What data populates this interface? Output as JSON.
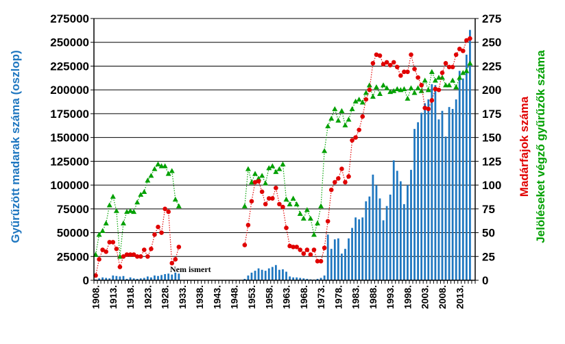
{
  "chart_data": {
    "type": "bar+line",
    "title": "",
    "left_axis": {
      "label": "Gyűrűzött madarak száma (oszlop)",
      "range": [
        0,
        275000
      ],
      "ticks": [
        "0",
        "25000",
        "50000",
        "75000",
        "100000",
        "125000",
        "150000",
        "175000",
        "200000",
        "225000",
        "250000",
        "275000"
      ],
      "color": "#1F77C0"
    },
    "right_axis": {
      "label_red": "Madárfajok száma",
      "label_green": "Jelöléseket végző gyűrűzők száma",
      "range": [
        0,
        275
      ],
      "ticks": [
        "0",
        "25",
        "50",
        "75",
        "100",
        "125",
        "150",
        "175",
        "200",
        "225",
        "250",
        "275"
      ],
      "color_red": "#E00000",
      "color_green": "#00A000"
    },
    "x_axis": {
      "range": [
        1908,
        2017
      ],
      "tick_labels": [
        "1908.",
        "1913.",
        "1918.",
        "1923.",
        "1928.",
        "1933.",
        "1938.",
        "1943.",
        "1948.",
        "1953.",
        "1958.",
        "1963.",
        "1968.",
        "1973.",
        "1978.",
        "1983.",
        "1988.",
        "1993.",
        "1998.",
        "2003.",
        "2008.",
        "2013."
      ],
      "tick_years": [
        1908,
        1913,
        1918,
        1923,
        1928,
        1933,
        1938,
        1943,
        1948,
        1953,
        1958,
        1963,
        1968,
        1973,
        1978,
        1983,
        1988,
        1993,
        1998,
        2003,
        2008,
        2013
      ]
    },
    "annotation": "Nem ismert",
    "grid": true,
    "bars": {
      "name": "Gyűrűzött madarak",
      "color": "#1F77C0",
      "x": [
        1908,
        1909,
        1910,
        1911,
        1912,
        1913,
        1914,
        1915,
        1916,
        1917,
        1918,
        1919,
        1920,
        1921,
        1922,
        1923,
        1924,
        1925,
        1926,
        1927,
        1928,
        1929,
        1930,
        1931,
        1932,
        1951,
        1952,
        1953,
        1954,
        1955,
        1956,
        1957,
        1958,
        1959,
        1960,
        1961,
        1962,
        1963,
        1964,
        1965,
        1966,
        1967,
        1968,
        1969,
        1970,
        1971,
        1972,
        1973,
        1974,
        1975,
        1976,
        1977,
        1978,
        1979,
        1980,
        1981,
        1982,
        1983,
        1984,
        1985,
        1986,
        1987,
        1988,
        1989,
        1990,
        1991,
        1992,
        1993,
        1994,
        1995,
        1996,
        1997,
        1998,
        1999,
        2000,
        2001,
        2002,
        2003,
        2004,
        2005,
        2006,
        2007,
        2008,
        2009,
        2010,
        2011,
        2012,
        2013,
        2014,
        2015,
        2016
      ],
      "values": [
        800,
        2000,
        3000,
        2500,
        2000,
        5000,
        4500,
        4000,
        4500,
        1500,
        3000,
        2000,
        1500,
        2000,
        2500,
        4000,
        3000,
        5000,
        4500,
        5500,
        6500,
        7000,
        6000,
        8000,
        7000,
        1500,
        5000,
        8000,
        10000,
        12500,
        11000,
        10000,
        12500,
        14000,
        16000,
        11000,
        11500,
        9000,
        4000,
        3000,
        3000,
        2500,
        2000,
        1500,
        1000,
        800,
        1500,
        2500,
        5000,
        48000,
        33000,
        43000,
        44000,
        28000,
        33000,
        44000,
        55000,
        66000,
        64000,
        66000,
        83000,
        88000,
        111000,
        100000,
        86000,
        63000,
        78000,
        90000,
        126000,
        115000,
        104000,
        80000,
        100000,
        116000,
        159000,
        166000,
        176000,
        186000,
        190000,
        206000,
        205000,
        169000,
        178000,
        151000,
        182000,
        180000,
        190000,
        220000,
        212000,
        237000,
        263000
      ]
    },
    "series_red": {
      "name": "Madárfajok száma",
      "color": "#E00000",
      "x": [
        1908,
        1909,
        1910,
        1911,
        1912,
        1913,
        1914,
        1915,
        1916,
        1917,
        1918,
        1919,
        1920,
        1921,
        1922,
        1923,
        1924,
        1925,
        1926,
        1927,
        1928,
        1929,
        1930,
        1931,
        1932,
        1951,
        1952,
        1953,
        1954,
        1955,
        1956,
        1957,
        1958,
        1959,
        1960,
        1961,
        1962,
        1963,
        1964,
        1965,
        1966,
        1967,
        1968,
        1969,
        1970,
        1971,
        1972,
        1973,
        1974,
        1975,
        1976,
        1977,
        1978,
        1979,
        1980,
        1981,
        1982,
        1983,
        1984,
        1985,
        1986,
        1987,
        1988,
        1989,
        1990,
        1991,
        1992,
        1993,
        1994,
        1995,
        1996,
        1997,
        1998,
        1999,
        2000,
        2001,
        2002,
        2003,
        2004,
        2005,
        2006,
        2007,
        2008,
        2009,
        2010,
        2011,
        2012,
        2013,
        2014,
        2015,
        2016
      ],
      "values": [
        5,
        22,
        32,
        30,
        40,
        40,
        33,
        14,
        25,
        27,
        27,
        27,
        25,
        25,
        32,
        25,
        33,
        48,
        56,
        50,
        75,
        72,
        18,
        22,
        35,
        37,
        58,
        83,
        103,
        104,
        93,
        80,
        86,
        86,
        97,
        80,
        77,
        55,
        36,
        35,
        35,
        32,
        28,
        32,
        27,
        32,
        20,
        20,
        34,
        62,
        95,
        103,
        107,
        117,
        103,
        109,
        147,
        150,
        158,
        172,
        190,
        200,
        228,
        237,
        236,
        227,
        229,
        226,
        229,
        224,
        215,
        219,
        219,
        237,
        222,
        213,
        205,
        181,
        180,
        189,
        201,
        200,
        218,
        228,
        224,
        224,
        237,
        243,
        241,
        252,
        254
      ]
    },
    "series_green": {
      "name": "Jelöléseket végző gyűrűzők száma",
      "color": "#00A000",
      "x": [
        1908,
        1909,
        1910,
        1911,
        1912,
        1913,
        1914,
        1915,
        1916,
        1917,
        1918,
        1919,
        1920,
        1921,
        1922,
        1923,
        1924,
        1925,
        1926,
        1927,
        1928,
        1929,
        1930,
        1931,
        1932,
        1951,
        1952,
        1953,
        1954,
        1955,
        1956,
        1957,
        1958,
        1959,
        1960,
        1961,
        1962,
        1963,
        1964,
        1965,
        1966,
        1967,
        1968,
        1969,
        1970,
        1971,
        1972,
        1973,
        1974,
        1975,
        1976,
        1977,
        1978,
        1979,
        1980,
        1981,
        1982,
        1983,
        1984,
        1985,
        1986,
        1987,
        1988,
        1989,
        1990,
        1991,
        1992,
        1993,
        1994,
        1995,
        1996,
        1997,
        1998,
        1999,
        2000,
        2001,
        2002,
        2003,
        2004,
        2005,
        2006,
        2007,
        2008,
        2009,
        2010,
        2011,
        2012,
        2013,
        2014,
        2015,
        2016
      ],
      "values": [
        27,
        48,
        52,
        60,
        79,
        88,
        73,
        25,
        60,
        72,
        73,
        72,
        82,
        90,
        93,
        105,
        110,
        117,
        122,
        120,
        120,
        112,
        115,
        85,
        78,
        78,
        117,
        103,
        112,
        107,
        110,
        102,
        118,
        120,
        114,
        117,
        122,
        85,
        80,
        86,
        80,
        70,
        65,
        74,
        65,
        48,
        60,
        78,
        136,
        162,
        170,
        180,
        168,
        178,
        163,
        169,
        180,
        188,
        190,
        187,
        197,
        205,
        193,
        203,
        196,
        205,
        202,
        198,
        199,
        201,
        200,
        201,
        191,
        202,
        197,
        202,
        199,
        210,
        200,
        219,
        210,
        213,
        213,
        205,
        205,
        210,
        203,
        213,
        218,
        220,
        228
      ]
    }
  }
}
